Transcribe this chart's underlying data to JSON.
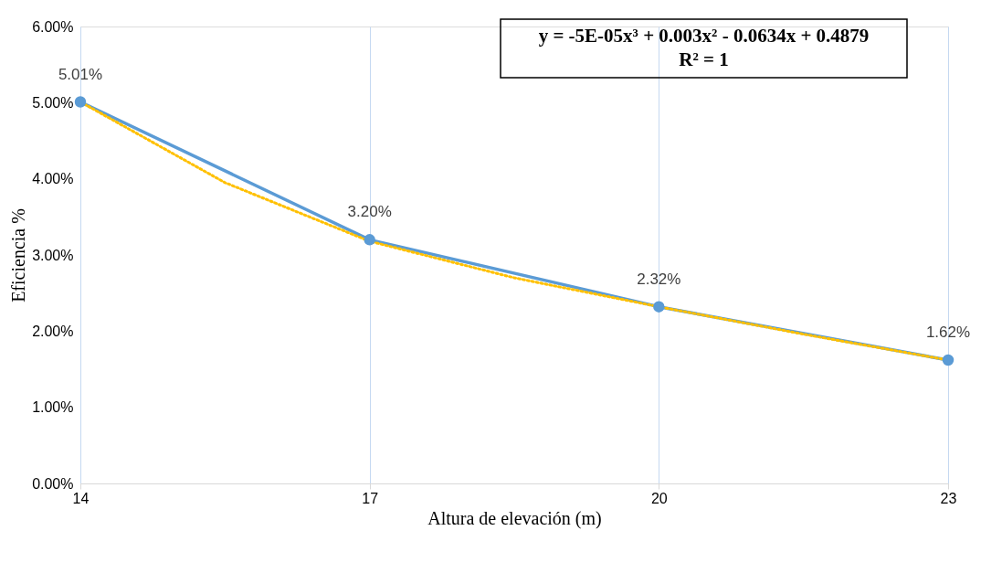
{
  "chart_data": {
    "type": "line",
    "xlabel": "Altura de elevación (m)",
    "ylabel": "Eficiencia %",
    "x": [
      14,
      17,
      20,
      23
    ],
    "series": [
      {
        "color": "#5b9bd5",
        "values": [
          5.01,
          3.2,
          2.32,
          1.62
        ],
        "value_labels": [
          "5.01%",
          "3.20%",
          "2.32%",
          "1.62%"
        ],
        "marker": "circle",
        "line_style": "solid"
      },
      {
        "type": "line",
        "color": "#ffc000",
        "x": [
          14,
          15.5,
          17,
          18.5,
          20,
          21.5,
          23
        ],
        "values": [
          5.01,
          3.95,
          3.18,
          2.7,
          2.32,
          1.96,
          1.62
        ],
        "marker": "none",
        "line_style": "dotted"
      }
    ],
    "xlim": [
      14,
      23
    ],
    "xticks": [
      14,
      17,
      20,
      23
    ],
    "ylim": [
      0,
      6
    ],
    "yticks": [
      {
        "value": 0,
        "label": "0.00%"
      },
      {
        "value": 1,
        "label": "1.00%"
      },
      {
        "value": 2,
        "label": "2.00%"
      },
      {
        "value": 3,
        "label": "3.00%"
      },
      {
        "value": 4,
        "label": "4.00%"
      },
      {
        "value": 5,
        "label": "5.00%"
      },
      {
        "value": 6,
        "label": "6.00%"
      }
    ],
    "grid": "x",
    "annotations": [
      "y = -5E-05x³ + 0.003x² - 0.0634x + 0.4879",
      "R² = 1"
    ]
  }
}
